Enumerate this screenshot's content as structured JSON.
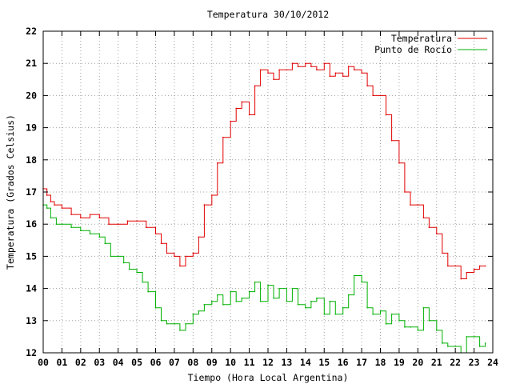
{
  "chart_data": {
    "type": "line",
    "title": "Temperatura 30/10/2012",
    "xlabel": "Tiempo (Hora Local Argentina)",
    "ylabel": "Temperatura (Grados Celsius)",
    "xlim": [
      0,
      24
    ],
    "ylim": [
      12,
      22
    ],
    "x_ticks": [
      "00",
      "01",
      "02",
      "03",
      "04",
      "05",
      "06",
      "07",
      "08",
      "09",
      "10",
      "11",
      "12",
      "13",
      "14",
      "15",
      "16",
      "17",
      "18",
      "19",
      "20",
      "21",
      "22",
      "23",
      "24"
    ],
    "y_ticks": [
      "12",
      "13",
      "14",
      "15",
      "16",
      "17",
      "18",
      "19",
      "20",
      "21",
      "22"
    ],
    "grid": true,
    "legend_position": "top-right",
    "series": [
      {
        "name": "Temperatura",
        "color": "#e00000",
        "x": [
          0,
          0.2,
          0.4,
          0.6,
          1.0,
          1.5,
          2.0,
          2.5,
          3.0,
          3.5,
          4.0,
          4.5,
          5.0,
          5.5,
          6.0,
          6.3,
          6.6,
          7.0,
          7.3,
          7.6,
          8.0,
          8.3,
          8.6,
          9.0,
          9.3,
          9.6,
          10.0,
          10.3,
          10.6,
          11.0,
          11.3,
          11.6,
          12.0,
          12.3,
          12.6,
          13.0,
          13.3,
          13.6,
          14.0,
          14.3,
          14.6,
          15.0,
          15.3,
          15.6,
          16.0,
          16.3,
          16.6,
          17.0,
          17.3,
          17.6,
          18.0,
          18.3,
          18.6,
          19.0,
          19.3,
          19.6,
          20.0,
          20.3,
          20.6,
          21.0,
          21.3,
          21.6,
          22.0,
          22.3,
          22.6,
          23.0,
          23.3,
          23.6
        ],
        "y": [
          17.1,
          16.9,
          16.7,
          16.6,
          16.5,
          16.3,
          16.2,
          16.3,
          16.2,
          16.0,
          16.0,
          16.1,
          16.1,
          15.9,
          15.7,
          15.4,
          15.1,
          15.0,
          14.7,
          15.0,
          15.1,
          15.6,
          16.6,
          16.9,
          17.9,
          18.7,
          19.2,
          19.6,
          19.8,
          19.4,
          20.3,
          20.8,
          20.7,
          20.5,
          20.8,
          20.8,
          21.0,
          20.9,
          21.0,
          20.9,
          20.8,
          21.0,
          20.6,
          20.7,
          20.6,
          20.9,
          20.8,
          20.7,
          20.3,
          20.0,
          20.0,
          19.4,
          18.6,
          17.9,
          17.0,
          16.6,
          16.6,
          16.2,
          15.9,
          15.7,
          15.1,
          14.7,
          14.7,
          14.3,
          14.5,
          14.6,
          14.7,
          14.7
        ]
      },
      {
        "name": "Punto de Rocío",
        "color": "#00b000",
        "x": [
          0,
          0.2,
          0.4,
          0.7,
          1.0,
          1.5,
          2.0,
          2.5,
          3.0,
          3.3,
          3.6,
          4.0,
          4.3,
          4.6,
          5.0,
          5.3,
          5.6,
          6.0,
          6.3,
          6.6,
          7.0,
          7.3,
          7.6,
          8.0,
          8.3,
          8.6,
          9.0,
          9.3,
          9.6,
          10.0,
          10.3,
          10.6,
          11.0,
          11.3,
          11.6,
          12.0,
          12.3,
          12.6,
          13.0,
          13.3,
          13.6,
          14.0,
          14.3,
          14.6,
          15.0,
          15.3,
          15.6,
          16.0,
          16.3,
          16.6,
          17.0,
          17.3,
          17.6,
          18.0,
          18.3,
          18.6,
          19.0,
          19.3,
          19.6,
          20.0,
          20.3,
          20.6,
          21.0,
          21.3,
          21.6,
          22.0,
          22.3,
          22.6,
          23.0,
          23.3,
          23.6
        ],
        "y": [
          16.6,
          16.5,
          16.2,
          16.0,
          16.0,
          15.9,
          15.8,
          15.7,
          15.6,
          15.4,
          15.0,
          15.0,
          14.8,
          14.6,
          14.5,
          14.2,
          13.9,
          13.4,
          13.0,
          12.9,
          12.9,
          12.7,
          12.9,
          13.2,
          13.3,
          13.5,
          13.6,
          13.8,
          13.5,
          13.9,
          13.6,
          13.7,
          13.9,
          14.2,
          13.6,
          14.1,
          13.7,
          14.0,
          13.6,
          14.0,
          13.5,
          13.4,
          13.6,
          13.7,
          13.2,
          13.6,
          13.2,
          13.4,
          13.8,
          14.4,
          14.2,
          13.4,
          13.2,
          13.3,
          12.9,
          13.2,
          13.0,
          12.8,
          12.8,
          12.7,
          13.4,
          13.0,
          12.7,
          12.3,
          12.2,
          12.2,
          12.0,
          12.5,
          12.5,
          12.2,
          12.3
        ]
      }
    ]
  }
}
